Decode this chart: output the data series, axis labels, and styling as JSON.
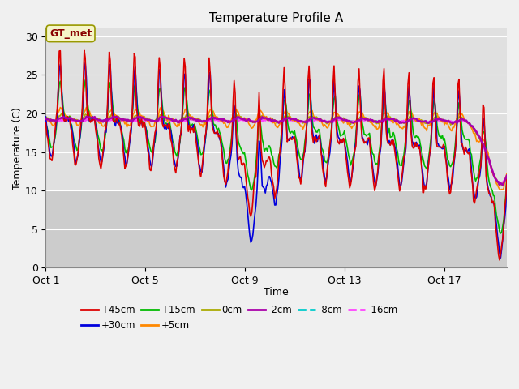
{
  "title": "Temperature Profile A",
  "xlabel": "Time",
  "ylabel": "Temperature (C)",
  "xlim": [
    0,
    18.5
  ],
  "ylim": [
    0,
    31
  ],
  "yticks": [
    0,
    5,
    10,
    15,
    20,
    25,
    30
  ],
  "xtick_labels": [
    "Oct 1",
    "Oct 5",
    "Oct 9",
    "Oct 13",
    "Oct 17"
  ],
  "xtick_positions": [
    0,
    4,
    8,
    12,
    16
  ],
  "plot_bg_color": "#e0e0e0",
  "lower_bg_color": "#cccccc",
  "lower_bg_threshold": 10,
  "grid_color": "#ffffff",
  "annotation_text": "GT_met",
  "legend_series": [
    "+45cm",
    "+30cm",
    "+15cm",
    "+5cm",
    "0cm",
    "-2cm",
    "-8cm",
    "-16cm"
  ],
  "legend_colors": [
    "#dd0000",
    "#0000dd",
    "#00bb00",
    "#ff8800",
    "#aaaa00",
    "#aa00aa",
    "#00cccc",
    "#ff44ff"
  ],
  "series_linewidths": [
    1.2,
    1.2,
    1.2,
    1.2,
    1.2,
    1.8,
    1.2,
    1.8
  ],
  "figsize": [
    6.4,
    4.8
  ],
  "dpi": 100
}
